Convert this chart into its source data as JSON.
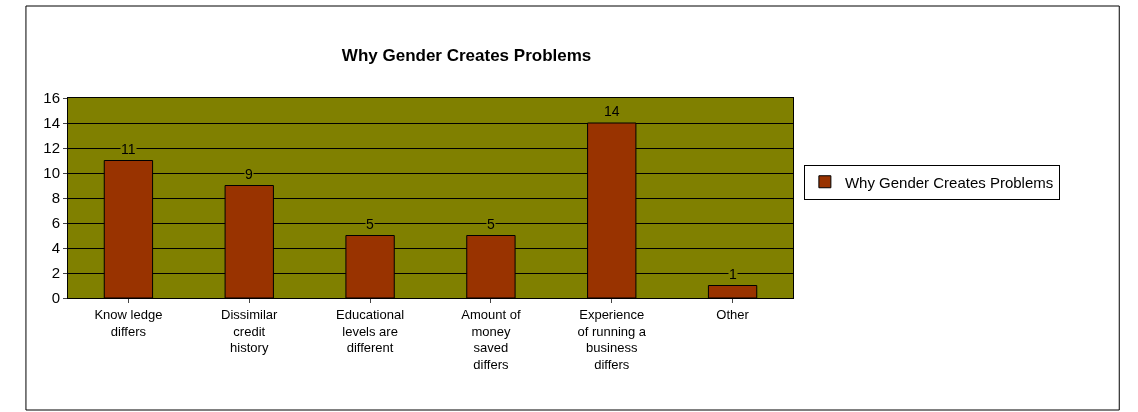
{
  "chart_data": {
    "type": "bar",
    "title": "Why Gender Creates Problems",
    "categories": [
      "Know ledge\ndiffers",
      "Dissimilar\ncredit\nhistory",
      "Educational\nlevels are\ndifferent",
      "Amount of\nmoney\nsaved\ndiffers",
      "Experience\nof running a\nbusiness\ndiffers",
      "Other"
    ],
    "series": [
      {
        "name": "Why Gender Creates Problems",
        "color": "#993300",
        "values": [
          11,
          9,
          5,
          5,
          14,
          1
        ]
      }
    ],
    "ylim": [
      0,
      16
    ],
    "yticks": [
      0,
      2,
      4,
      6,
      8,
      10,
      12,
      14,
      16
    ],
    "grid": "y",
    "legend": "right",
    "data_labels": true
  }
}
